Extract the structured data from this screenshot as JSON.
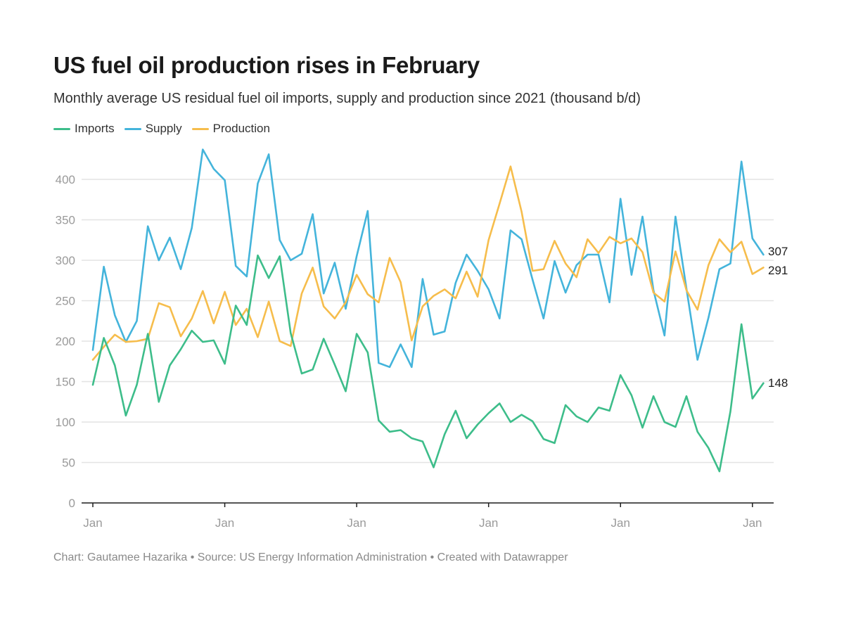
{
  "header": {
    "title": "US fuel oil production rises in February",
    "subtitle": "Monthly average US residual fuel oil imports, supply and production since 2021 (thousand b/d)"
  },
  "legend": {
    "items": [
      {
        "label": "Imports",
        "color": "#3dbd8a"
      },
      {
        "label": "Supply",
        "color": "#44b4db"
      },
      {
        "label": "Production",
        "color": "#f6bd4c"
      }
    ]
  },
  "footer": {
    "credit": "Chart: Gautamee Hazarika • Source: US Energy Information Administration  • Created with Datawrapper"
  },
  "chart_data": {
    "type": "line",
    "x_start": "2021-01",
    "x_tick_labels": [
      "Jan",
      "Jan",
      "Jan",
      "Jan",
      "Jan",
      "Jan"
    ],
    "ylim": [
      0,
      430
    ],
    "y_ticks": [
      0,
      50,
      100,
      150,
      200,
      250,
      300,
      350,
      400
    ],
    "grid": true,
    "legend_position": "top-left",
    "end_labels": {
      "Imports": "148",
      "Supply": "307",
      "Production": "291"
    },
    "series": [
      {
        "name": "Imports",
        "color": "#3dbd8a",
        "values": [
          146,
          204,
          170,
          108,
          146,
          209,
          125,
          170,
          190,
          213,
          199,
          201,
          172,
          244,
          220,
          306,
          278,
          305,
          210,
          160,
          165,
          203,
          171,
          138,
          209,
          186,
          102,
          88,
          90,
          80,
          76,
          44,
          85,
          114,
          80,
          97,
          111,
          123,
          100,
          109,
          101,
          79,
          74,
          121,
          107,
          100,
          118,
          114,
          158,
          133,
          93,
          132,
          100,
          94,
          132,
          88,
          68,
          39,
          113,
          221,
          129,
          148
        ]
      },
      {
        "name": "Supply",
        "color": "#44b4db",
        "values": [
          189,
          292,
          232,
          199,
          225,
          342,
          300,
          328,
          289,
          340,
          437,
          413,
          399,
          293,
          280,
          395,
          431,
          325,
          300,
          308,
          357,
          259,
          297,
          240,
          305,
          361,
          173,
          168,
          196,
          168,
          277,
          208,
          212,
          272,
          307,
          287,
          264,
          228,
          337,
          326,
          276,
          228,
          299,
          260,
          294,
          307,
          307,
          248,
          376,
          282,
          354,
          263,
          207,
          354,
          265,
          177,
          229,
          289,
          296,
          422,
          327,
          307
        ]
      },
      {
        "name": "Production",
        "color": "#f6bd4c",
        "values": [
          177,
          193,
          208,
          199,
          200,
          203,
          247,
          242,
          206,
          228,
          262,
          222,
          261,
          220,
          240,
          205,
          249,
          200,
          194,
          259,
          291,
          243,
          228,
          248,
          282,
          258,
          248,
          303,
          273,
          201,
          243,
          256,
          264,
          253,
          286,
          255,
          325,
          370,
          416,
          360,
          287,
          289,
          324,
          296,
          279,
          326,
          309,
          329,
          321,
          327,
          310,
          260,
          249,
          311,
          263,
          239,
          294,
          326,
          310,
          323,
          283,
          291
        ]
      }
    ]
  }
}
